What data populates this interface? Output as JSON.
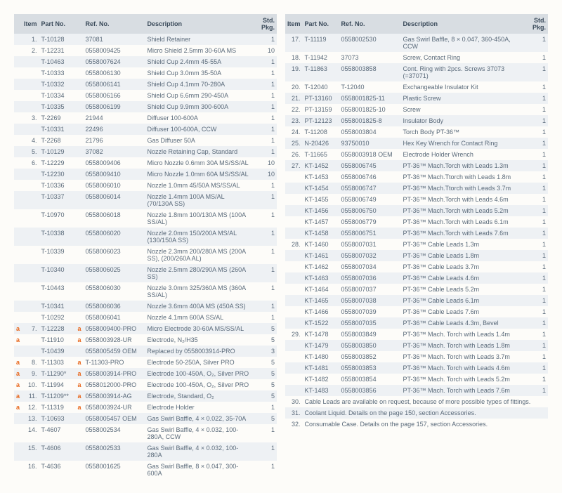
{
  "headers": {
    "item": "Item",
    "part": "Part No.",
    "ref": "Ref. No.",
    "desc": "Description",
    "pkg": "Std. Pkg."
  },
  "left": [
    {
      "i": "1.",
      "p": "T-10128",
      "r": "37081",
      "d": "Shield Retainer",
      "k": "1"
    },
    {
      "i": "2.",
      "p": "T-12231",
      "r": "0558009425",
      "d": "Micro Shield 2.5mm 30-60A MS",
      "k": "10"
    },
    {
      "i": "",
      "p": "T-10463",
      "r": "0558007624",
      "d": "Shield Cup 2.4mm 45-55A",
      "k": "1"
    },
    {
      "i": "",
      "p": "T-10333",
      "r": "0558006130",
      "d": "Shield Cup 3.0mm 35-50A",
      "k": "1"
    },
    {
      "i": "",
      "p": "T-10332",
      "r": "0558006141",
      "d": "Shield Cup 4.1mm 70-280A",
      "k": "1"
    },
    {
      "i": "",
      "p": "T-10334",
      "r": "0558006166",
      "d": "Shield Cup 6.6mm 290-450A",
      "k": "1"
    },
    {
      "i": "",
      "p": "T-10335",
      "r": "0558006199",
      "d": "Shield Cup 9.9mm 300-600A",
      "k": "1"
    },
    {
      "i": "3.",
      "p": "T-2269",
      "r": "21944",
      "d": "Diffuser 100-600A",
      "k": "1"
    },
    {
      "i": "",
      "p": "T-10331",
      "r": "22496",
      "d": "Diffuser 100-600A, CCW",
      "k": "1"
    },
    {
      "i": "4.",
      "p": "T-2268",
      "r": "21796",
      "d": "Gas Diffuser 50A",
      "k": "1"
    },
    {
      "i": "5.",
      "p": "T-10129",
      "r": "37082",
      "d": "Nozzle Retaining Cap, Standard",
      "k": "1"
    },
    {
      "i": "6.",
      "p": "T-12229",
      "r": "0558009406",
      "d": "Micro Nozzle 0.6mm 30A MS/SS/AL",
      "k": "10"
    },
    {
      "i": "",
      "p": "T-12230",
      "r": "0558009410",
      "d": "Micro Nozzle 1.0mm 60A MS/SS/AL",
      "k": "10"
    },
    {
      "i": "",
      "p": "T-10336",
      "r": "0558006010",
      "d": "Nozzle 1.0mm 45/50A MS/SS/AL",
      "k": "1"
    },
    {
      "i": "",
      "p": "T-10337",
      "r": "0558006014",
      "d": "Nozzle 1.4mm 100A MS/AL (70/130A SS)",
      "k": "1"
    },
    {
      "i": "",
      "p": "T-10970",
      "r": "0558006018",
      "d": "Nozzle 1.8mm 100/130A MS (100A SS/AL)",
      "k": "1"
    },
    {
      "i": "",
      "p": "T-10338",
      "r": "0558006020",
      "d": "Nozzle 2.0mm 150/200A MS/AL (130/150A SS)",
      "k": "1"
    },
    {
      "i": "",
      "p": "T-10339",
      "r": "0558006023",
      "d": "Nozzle 2.3mm 200/280A MS (200A SS), (200/260A AL)",
      "k": "1"
    },
    {
      "i": "",
      "p": "T-10340",
      "r": "0558006025",
      "d": "Nozzle 2.5mm 280/290A MS (260A SS)",
      "k": "1"
    },
    {
      "i": "",
      "p": "T-10443",
      "r": "0558006030",
      "d": "Nozzle 3.0mm 325/360A MS (360A SS/AL)",
      "k": "1"
    },
    {
      "i": "",
      "p": "T-10341",
      "r": "0558006036",
      "d": "Nozzle 3.6mm 400A MS (450A SS)",
      "k": "1"
    },
    {
      "i": "",
      "p": "T-10292",
      "r": "0558006041",
      "d": "Nozzle 4.1mm 600A SS/AL",
      "k": "1"
    },
    {
      "m": "a",
      "i": "7.",
      "p": "T-12228",
      "pm": "a",
      "r": "0558009400-PRO",
      "d": "Micro Electrode 30-60A MS/SS/AL",
      "k": "5"
    },
    {
      "m": "a",
      "i": "",
      "p": "T-11910",
      "pm": "a",
      "r": "0558003928-UR",
      "d": "Electrode, N₂/H35",
      "k": "5"
    },
    {
      "i": "",
      "p": "T-10439",
      "r": "0558005459 OEM",
      "d": "Replaced by 0558003914-PRO",
      "k": "3"
    },
    {
      "m": "a",
      "i": "8.",
      "p": "T-11303",
      "pm": "a",
      "r": "T-11303-PRO",
      "d": "Electrode 50-250A, Silver PRO",
      "k": "5"
    },
    {
      "m": "a",
      "i": "9.",
      "p": "T-11290*",
      "pm": "a",
      "r": "0558003914-PRO",
      "d": "Electrode 100-450A, O₂, Silver PRO",
      "k": "5"
    },
    {
      "m": "a",
      "i": "10.",
      "p": "T-11994",
      "pm": "a",
      "r": "0558012000-PRO",
      "d": "Electrode 100-450A, O₂, Silver PRO",
      "k": "5"
    },
    {
      "m": "a",
      "i": "11.",
      "p": "T-11209**",
      "pm": "a",
      "r": "0558003914-AG",
      "d": "Electrode, Standard, O₂",
      "k": "5"
    },
    {
      "m": "a",
      "i": "12.",
      "p": "T-11319",
      "pm": "a",
      "r": "0558003924-UR",
      "d": "Electrode Holder",
      "k": "1"
    },
    {
      "i": "13.",
      "p": "T-10693",
      "r": "0558005457 OEM",
      "d": "Gas Swirl Baffle, 4 × 0.022, 35-70A",
      "k": "5"
    },
    {
      "i": "14.",
      "p": "T-4607",
      "r": "0558002534",
      "d": "Gas Swirl Baffle, 4 × 0.032, 100-280A, CCW",
      "k": "1"
    },
    {
      "i": "15.",
      "p": "T-4606",
      "r": "0558002533",
      "d": "Gas Swirl Baffle, 4 × 0.032, 100-280A",
      "k": "1"
    },
    {
      "i": "16.",
      "p": "T-4636",
      "r": "0558001625",
      "d": "Gas Swirl Baffle, 8 × 0.047, 300-600A",
      "k": "1"
    }
  ],
  "right": [
    {
      "i": "17.",
      "p": "T-11119",
      "r": "0558002530",
      "d": "Gas Swirl Baffle, 8 × 0.047, 360-450A, CCW",
      "k": "1"
    },
    {
      "i": "18.",
      "p": "T-11942",
      "r": "37073",
      "d": "Screw, Contact Ring",
      "k": "1"
    },
    {
      "i": "19.",
      "p": "T-11863",
      "r": "0558003858",
      "d": "Cont. Ring with 2pcs. Screws 37073 (=37071)",
      "k": "1"
    },
    {
      "i": "20.",
      "p": "T-12040",
      "r": "T-12040",
      "d": "Exchangeable Insulator Kit",
      "k": "1"
    },
    {
      "i": "21.",
      "p": "PT-13160",
      "r": "0558001825-11",
      "d": "Plastic Screw",
      "k": "1"
    },
    {
      "i": "22.",
      "p": "PT-13159",
      "r": "0558001825-10",
      "d": "Screw",
      "k": "1"
    },
    {
      "i": "23.",
      "p": "PT-12123",
      "r": "0558001825-8",
      "d": "Insulator Body",
      "k": "1"
    },
    {
      "i": "24.",
      "p": "T-11208",
      "r": "0558003804",
      "d": "Torch Body PT-36™",
      "k": "1"
    },
    {
      "i": "25.",
      "p": "N-20426",
      "r": "93750010",
      "d": "Hex Key Wrench for Contact Ring",
      "k": "1"
    },
    {
      "i": "26.",
      "p": "T-11665",
      "r": "0558003918 OEM",
      "d": "Electrode Holder Wrench",
      "k": "1"
    },
    {
      "i": "27.",
      "p": "KT-1452",
      "r": "0558006745",
      "d": "PT-36™ Mach.Torch with Leads 1.3m",
      "k": "1"
    },
    {
      "i": "",
      "p": "KT-1453",
      "r": "0558006746",
      "d": "PT-36™ Mach.Ttorch with Leads 1.8m",
      "k": "1"
    },
    {
      "i": "",
      "p": "KT-1454",
      "r": "0558006747",
      "d": "PT-36™ Mach.Ttorch with Leads 3.7m",
      "k": "1"
    },
    {
      "i": "",
      "p": "KT-1455",
      "r": "0558006749",
      "d": "PT-36™ Mach.Torch with Leads 4.6m",
      "k": "1"
    },
    {
      "i": "",
      "p": "KT-1456",
      "r": "0558006750",
      "d": "PT-36™ Mach.Torch with Leads 5.2m",
      "k": "1"
    },
    {
      "i": "",
      "p": "KT-1457",
      "r": "0558006779",
      "d": "PT-36™ Mach.Torch with Leads 6.1m",
      "k": "1"
    },
    {
      "i": "",
      "p": "KT-1458",
      "r": "0558006751",
      "d": "PT-36™ Mach.Torch with Leads 7.6m",
      "k": "1"
    },
    {
      "i": "28.",
      "p": "KT-1460",
      "r": "0558007031",
      "d": "PT-36™ Cable Leads 1.3m",
      "k": "1"
    },
    {
      "i": "",
      "p": "KT-1461",
      "r": "0558007032",
      "d": "PT-36™ Cable Leads 1.8m",
      "k": "1"
    },
    {
      "i": "",
      "p": "KT-1462",
      "r": "0558007034",
      "d": "PT-36™ Cable Leads 3.7m",
      "k": "1"
    },
    {
      "i": "",
      "p": "KT-1463",
      "r": "0558007036",
      "d": "PT-36™ Cable Leads 4.6m",
      "k": "1"
    },
    {
      "i": "",
      "p": "KT-1464",
      "r": "0558007037",
      "d": "PT-36™ Cable Leads 5.2m",
      "k": "1"
    },
    {
      "i": "",
      "p": "KT-1465",
      "r": "0558007038",
      "d": "PT-36™ Cable Leads 6.1m",
      "k": "1"
    },
    {
      "i": "",
      "p": "KT-1466",
      "r": "0558007039",
      "d": "PT-36™ Cable Leads 7.6m",
      "k": "1"
    },
    {
      "i": "",
      "p": "KT-1522",
      "r": "0558007035",
      "d": "PT-36™ Cable Leads 4.3m, Bevel",
      "k": "1"
    },
    {
      "i": "29.",
      "p": "KT-1478",
      "r": "0558003849",
      "d": "PT-36™ Mach. Torch with Leads 1.4m",
      "k": "1"
    },
    {
      "i": "",
      "p": "KT-1479",
      "r": "0558003850",
      "d": "PT-36™ Mach. Torch with Leads 1.8m",
      "k": "1"
    },
    {
      "i": "",
      "p": "KT-1480",
      "r": "0558003852",
      "d": "PT-36™ Mach. Torch with Leads 3.7m",
      "k": "1"
    },
    {
      "i": "",
      "p": "KT-1481",
      "r": "0558003853",
      "d": "PT-36™ Mach. Torch with Leads 4.6m",
      "k": "1"
    },
    {
      "i": "",
      "p": "KT-1482",
      "r": "0558003854",
      "d": "PT-36™ Mach. Torch with Leads 5.2m",
      "k": "1"
    },
    {
      "i": "",
      "p": "KT-1483",
      "r": "0558003856",
      "d": "PT-36™ Mach. Torch with Leads 7.6m",
      "k": "1"
    },
    {
      "note": true,
      "i": "30.",
      "d": "Cable Leads are available on request, because of more possible types of fittings."
    },
    {
      "note": true,
      "i": "31.",
      "d": "Coolant Liquid. Details on the page 150, section Accessories."
    },
    {
      "note": true,
      "i": "32.",
      "d": "Consumable Case. Details on the page 157, section Accessories."
    }
  ]
}
